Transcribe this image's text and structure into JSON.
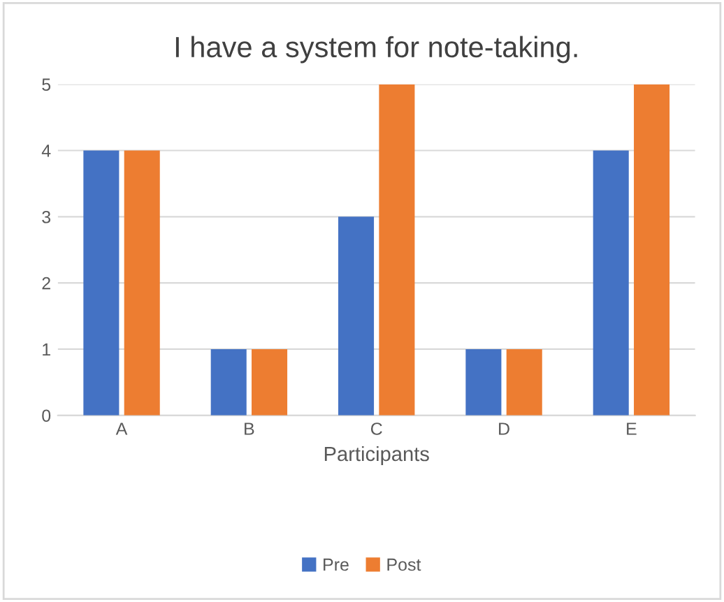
{
  "chart_data": {
    "type": "bar",
    "title": "I have a system for note-taking.",
    "xlabel": "Participants",
    "categories": [
      "A",
      "B",
      "C",
      "D",
      "E"
    ],
    "series": [
      {
        "name": "Pre",
        "color": "#4472c4",
        "values": [
          4,
          1,
          3,
          1,
          4
        ]
      },
      {
        "name": "Post",
        "color": "#ed7d31",
        "values": [
          4,
          1,
          5,
          1,
          5
        ]
      }
    ],
    "ylim": [
      0,
      5
    ],
    "yticks": [
      0,
      1,
      2,
      3,
      4,
      5
    ],
    "grid": "y",
    "legend": "bottom"
  }
}
